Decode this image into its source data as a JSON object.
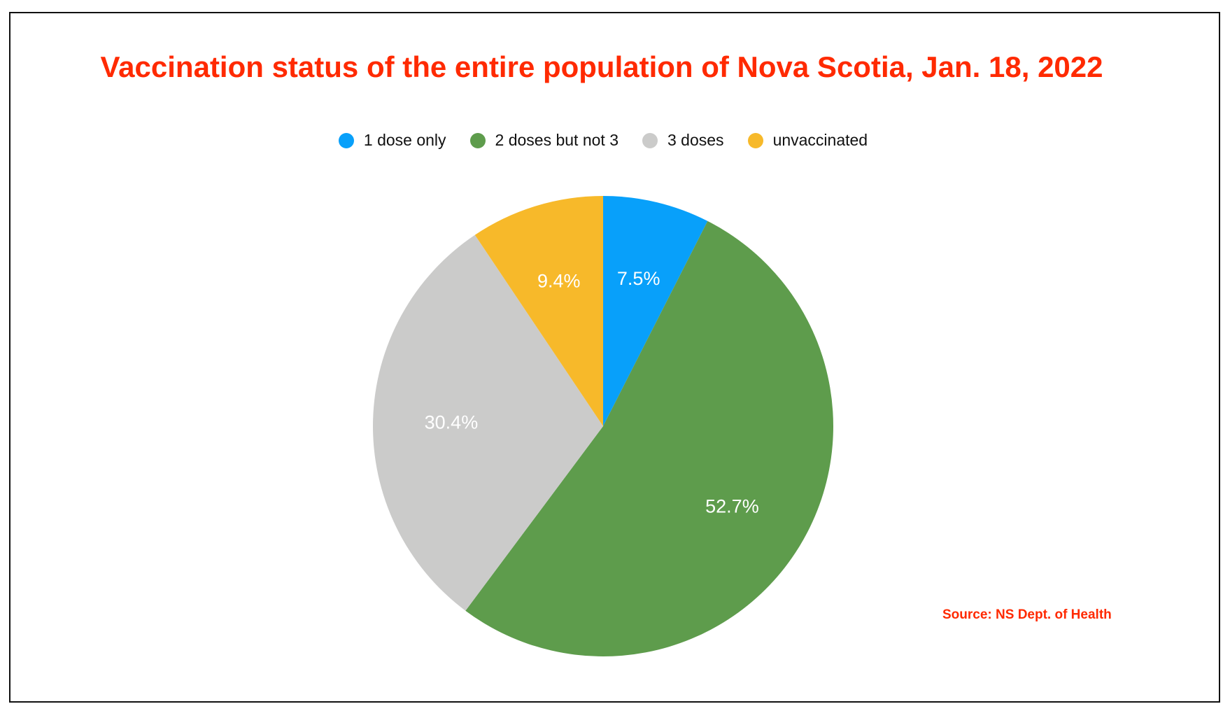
{
  "chart_data": {
    "type": "pie",
    "title": "Vaccination status of the entire population of Nova Scotia, Jan. 18, 2022",
    "categories": [
      "1 dose only",
      "2 doses but not 3",
      "3 doses",
      "unvaccinated"
    ],
    "values": [
      7.5,
      52.7,
      30.4,
      9.4
    ],
    "labels": [
      "7.5%",
      "52.7%",
      "30.4%",
      "9.4%"
    ],
    "colors": [
      "#08a0fa",
      "#5e9c4c",
      "#cbcbca",
      "#f7b92a"
    ],
    "legend_position": "top",
    "start": "top, clockwise",
    "source": "Source: NS Dept. of Health"
  }
}
